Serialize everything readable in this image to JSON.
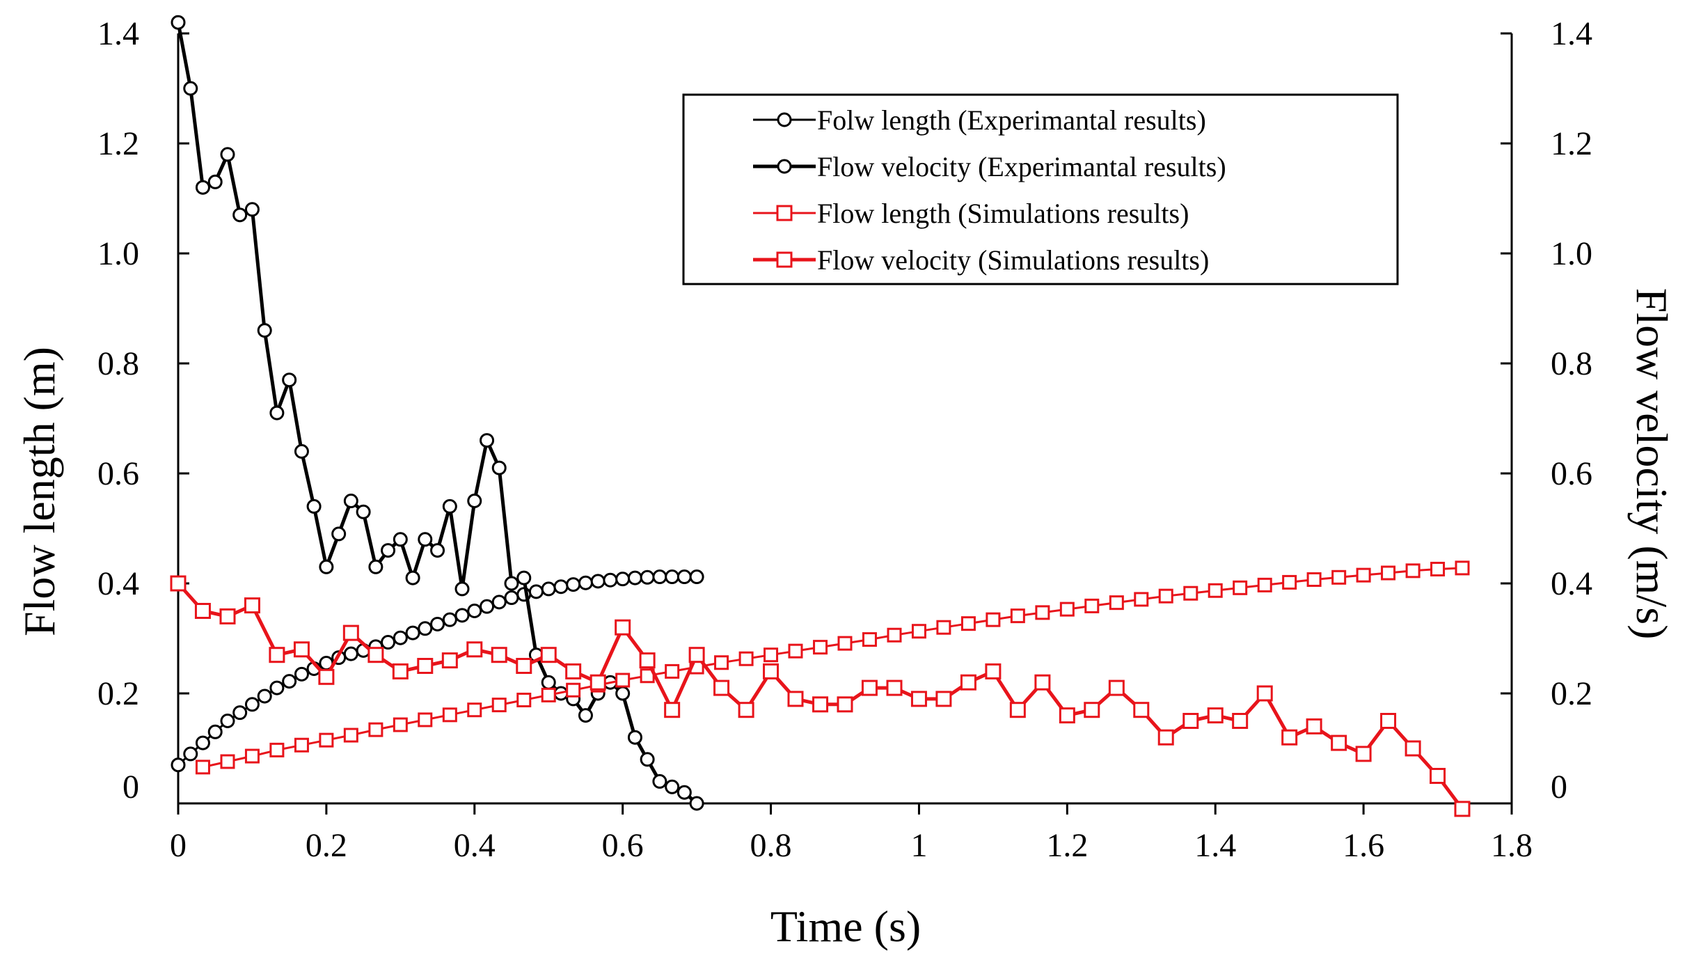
{
  "chart_data": {
    "type": "line",
    "title": "",
    "xlabel": "Time (s)",
    "ylabel": "Flow length (m)",
    "ylabel_right": "Flow velocity (m/s)",
    "xlim": [
      0,
      1.8
    ],
    "ylim": [
      0,
      1.4
    ],
    "ylim_right": [
      0,
      1.4
    ],
    "xticks": [
      0,
      0.2,
      0.4,
      0.6,
      0.8,
      1,
      1.2,
      1.4,
      1.6,
      1.8
    ],
    "xtick_labels": [
      "0",
      "0.2",
      "0.4",
      "0.6",
      "0.8",
      "1",
      "1.2",
      "1.4",
      "1.6",
      "1.8"
    ],
    "yticks": [
      0,
      0.2,
      0.4,
      0.6,
      0.8,
      1.0,
      1.2,
      1.4
    ],
    "ytick_labels": [
      "0",
      "0.2",
      "0.4",
      "0.6",
      "0.8",
      "1.0",
      "1.2",
      "1.4"
    ],
    "ytick_labels_right": [
      "0",
      "0.2",
      "0.4",
      "0.6",
      "0.8",
      "1.0",
      "1.2",
      "1.4"
    ],
    "grid": false,
    "legend_position": "top-right",
    "colors": {
      "experimental": "#000000",
      "simulation": "#e8141b"
    },
    "series": [
      {
        "name": "Folw length (Experimantal results)",
        "axis": "left",
        "color": "#000000",
        "marker": "circle",
        "line": "thin",
        "x": [
          0,
          0.0167,
          0.0333,
          0.05,
          0.0667,
          0.0833,
          0.1,
          0.1167,
          0.1333,
          0.15,
          0.1667,
          0.1833,
          0.2,
          0.2167,
          0.2333,
          0.25,
          0.2667,
          0.2833,
          0.3,
          0.3167,
          0.3333,
          0.35,
          0.3667,
          0.3833,
          0.4,
          0.4167,
          0.4333,
          0.45,
          0.4667,
          0.4833,
          0.5,
          0.5167,
          0.5333,
          0.55,
          0.5667,
          0.5833,
          0.6,
          0.6167,
          0.6333,
          0.65,
          0.6667,
          0.6833,
          0.7
        ],
        "y": [
          0.07,
          0.09,
          0.11,
          0.13,
          0.15,
          0.165,
          0.18,
          0.195,
          0.21,
          0.222,
          0.235,
          0.245,
          0.255,
          0.265,
          0.272,
          0.278,
          0.285,
          0.293,
          0.301,
          0.31,
          0.318,
          0.326,
          0.334,
          0.342,
          0.35,
          0.358,
          0.366,
          0.374,
          0.38,
          0.385,
          0.39,
          0.394,
          0.398,
          0.401,
          0.404,
          0.406,
          0.408,
          0.41,
          0.411,
          0.412,
          0.412,
          0.412,
          0.412
        ]
      },
      {
        "name": "Flow velocity (Experimantal results)",
        "axis": "right",
        "color": "#000000",
        "marker": "circle",
        "line": "thick",
        "x": [
          0,
          0.0167,
          0.0333,
          0.05,
          0.0667,
          0.0833,
          0.1,
          0.1167,
          0.1333,
          0.15,
          0.1667,
          0.1833,
          0.2,
          0.2167,
          0.2333,
          0.25,
          0.2667,
          0.2833,
          0.3,
          0.3167,
          0.3333,
          0.35,
          0.3667,
          0.3833,
          0.4,
          0.4167,
          0.4333,
          0.45,
          0.4667,
          0.4833,
          0.5,
          0.5167,
          0.5333,
          0.55,
          0.5667,
          0.5833,
          0.6,
          0.6167,
          0.6333,
          0.65,
          0.6667,
          0.6833,
          0.7
        ],
        "y": [
          1.42,
          1.3,
          1.12,
          1.13,
          1.18,
          1.07,
          1.08,
          0.86,
          0.71,
          0.77,
          0.64,
          0.54,
          0.43,
          0.49,
          0.55,
          0.53,
          0.43,
          0.46,
          0.48,
          0.41,
          0.48,
          0.46,
          0.54,
          0.39,
          0.55,
          0.66,
          0.61,
          0.4,
          0.41,
          0.27,
          0.22,
          0.2,
          0.19,
          0.16,
          0.2,
          0.22,
          0.2,
          0.12,
          0.08,
          0.04,
          0.03,
          0.02,
          0.0
        ]
      },
      {
        "name": "Flow length (Simulations results)",
        "axis": "left",
        "color": "#e8141b",
        "marker": "square",
        "line": "thin",
        "x": [
          0.0333,
          0.0667,
          0.1,
          0.1333,
          0.1667,
          0.2,
          0.2333,
          0.2667,
          0.3,
          0.3333,
          0.3667,
          0.4,
          0.4333,
          0.4667,
          0.5,
          0.5333,
          0.5667,
          0.6,
          0.6333,
          0.6667,
          0.7,
          0.7333,
          0.7667,
          0.8,
          0.8333,
          0.8667,
          0.9,
          0.9333,
          0.9667,
          1.0,
          1.0333,
          1.0667,
          1.1,
          1.1333,
          1.1667,
          1.2,
          1.2333,
          1.2667,
          1.3,
          1.3333,
          1.3667,
          1.4,
          1.4333,
          1.4667,
          1.5,
          1.5333,
          1.5667,
          1.6,
          1.6333,
          1.6667,
          1.7,
          1.7333
        ],
        "y": [
          0.066,
          0.076,
          0.086,
          0.097,
          0.106,
          0.115,
          0.124,
          0.134,
          0.143,
          0.152,
          0.161,
          0.17,
          0.179,
          0.188,
          0.197,
          0.206,
          0.215,
          0.224,
          0.232,
          0.24,
          0.248,
          0.256,
          0.263,
          0.27,
          0.277,
          0.284,
          0.291,
          0.298,
          0.306,
          0.313,
          0.32,
          0.327,
          0.334,
          0.341,
          0.347,
          0.353,
          0.359,
          0.365,
          0.371,
          0.377,
          0.382,
          0.387,
          0.392,
          0.397,
          0.402,
          0.407,
          0.411,
          0.415,
          0.419,
          0.423,
          0.426,
          0.428
        ]
      },
      {
        "name": "Flow velocity (Simulations results)",
        "axis": "right",
        "color": "#e8141b",
        "marker": "square",
        "line": "thick",
        "x": [
          0,
          0.0333,
          0.0667,
          0.1,
          0.1333,
          0.1667,
          0.2,
          0.2333,
          0.2667,
          0.3,
          0.3333,
          0.3667,
          0.4,
          0.4333,
          0.4667,
          0.5,
          0.5333,
          0.5667,
          0.6,
          0.6333,
          0.6667,
          0.7,
          0.7333,
          0.7667,
          0.8,
          0.8333,
          0.8667,
          0.9,
          0.9333,
          0.9667,
          1.0,
          1.0333,
          1.0667,
          1.1,
          1.1333,
          1.1667,
          1.2,
          1.2333,
          1.2667,
          1.3,
          1.3333,
          1.3667,
          1.4,
          1.4333,
          1.4667,
          1.5,
          1.5333,
          1.5667,
          1.6,
          1.6333,
          1.6667,
          1.7,
          1.7333
        ],
        "y": [
          0.4,
          0.35,
          0.34,
          0.36,
          0.27,
          0.28,
          0.23,
          0.31,
          0.27,
          0.24,
          0.25,
          0.26,
          0.28,
          0.27,
          0.25,
          0.27,
          0.24,
          0.22,
          0.32,
          0.26,
          0.17,
          0.27,
          0.21,
          0.17,
          0.24,
          0.19,
          0.18,
          0.18,
          0.21,
          0.21,
          0.19,
          0.19,
          0.22,
          0.24,
          0.17,
          0.22,
          0.16,
          0.17,
          0.21,
          0.17,
          0.12,
          0.15,
          0.16,
          0.15,
          0.2,
          0.12,
          0.14,
          0.11,
          0.09,
          0.15,
          0.1,
          0.05,
          -0.01
        ]
      }
    ]
  }
}
